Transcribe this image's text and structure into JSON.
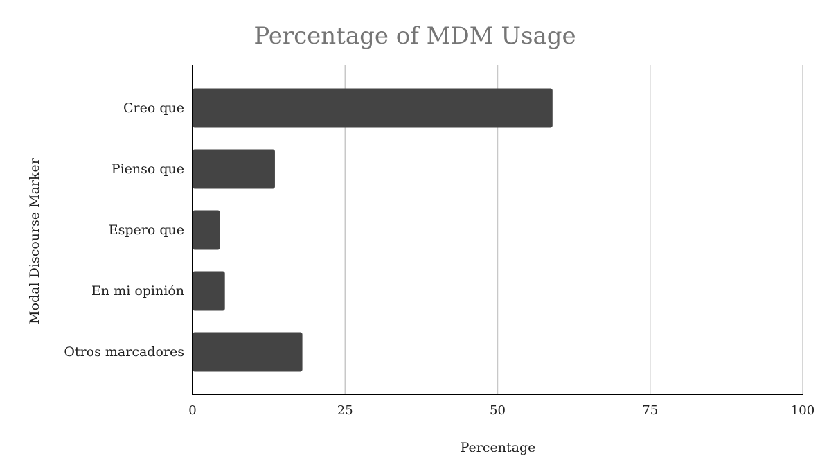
{
  "chart_data": {
    "type": "bar",
    "orientation": "horizontal",
    "title": "Percentage of MDM Usage",
    "xlabel": "Percentage",
    "ylabel": "Modal Discourse Marker",
    "categories": [
      "Creo que",
      "Pienso que",
      "Espero que",
      "En mi opinión",
      "Otros marcadores"
    ],
    "values": [
      59,
      13.5,
      4.5,
      5.3,
      18
    ],
    "xlim": [
      0,
      100
    ],
    "xticks": [
      "0",
      "25",
      "50",
      "75",
      "100"
    ],
    "grid": "vertical",
    "legend": "none",
    "bar_color": "#444444"
  }
}
